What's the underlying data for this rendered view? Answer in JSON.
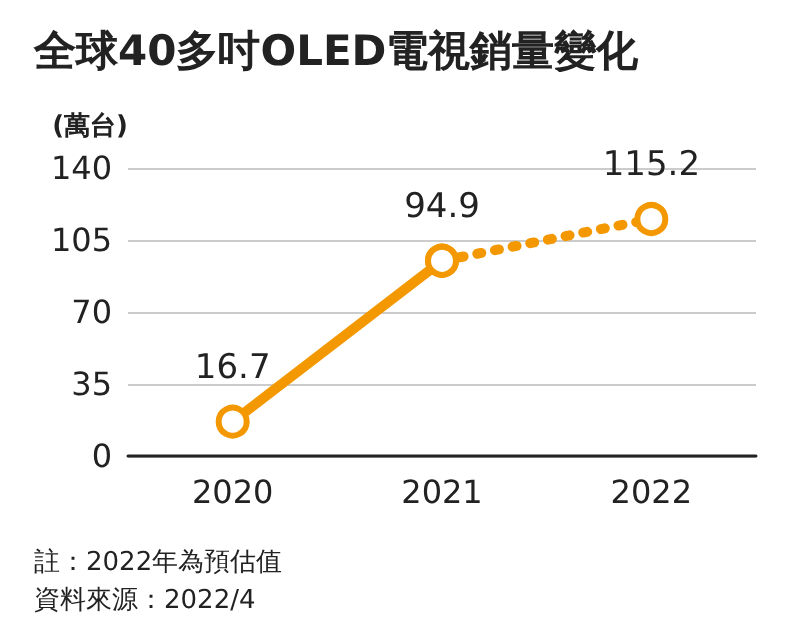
{
  "chart_data": {
    "type": "line",
    "title": "全球40多吋OLED電視銷量變化",
    "ylabel": "(萬台)",
    "categories": [
      "2020",
      "2021",
      "2022"
    ],
    "series": [
      {
        "color": "#f39800",
        "values": [
          16.7,
          94.9,
          null
        ],
        "line_style": "solid",
        "value_labels": [
          "16.7",
          "94.9",
          null
        ]
      },
      {
        "color": "#f39800",
        "values": [
          null,
          94.9,
          115.2
        ],
        "line_style": "dotted",
        "value_labels": [
          null,
          null,
          "115.2"
        ]
      }
    ],
    "ylim": [
      0,
      140
    ],
    "yticks": [
      0,
      35,
      70,
      105,
      140
    ],
    "grid": "y",
    "marker": "circle",
    "annotations": [
      "註：2022年為預估值",
      "資料來源：2022/4"
    ]
  }
}
